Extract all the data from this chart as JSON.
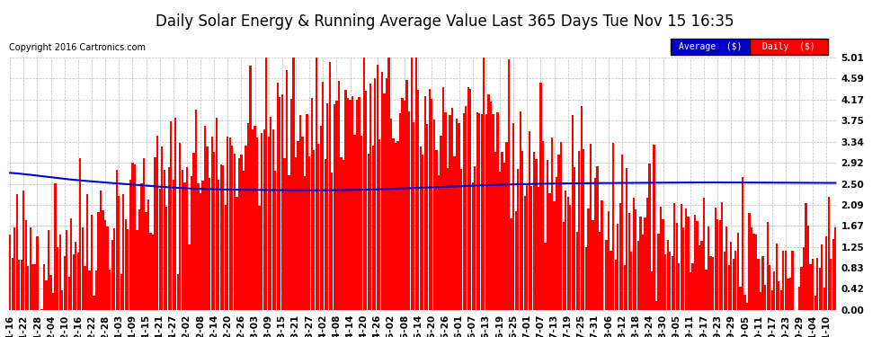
{
  "title": "Daily Solar Energy & Running Average Value Last 365 Days Tue Nov 15 16:35",
  "copyright": "Copyright 2016 Cartronics.com",
  "bar_color": "#ff0000",
  "avg_color": "#0000cc",
  "bg_color": "#ffffff",
  "plot_bg_color": "#ffffff",
  "grid_color": "#bbbbbb",
  "ylim": [
    0.0,
    5.01
  ],
  "yticks": [
    0.0,
    0.42,
    0.83,
    1.25,
    1.67,
    2.09,
    2.5,
    2.92,
    3.34,
    3.75,
    4.17,
    4.59,
    5.01
  ],
  "ytick_labels": [
    "0.00",
    "0.42",
    "0.83",
    "1.25",
    "1.67",
    "2.09",
    "2.50",
    "2.92",
    "3.34",
    "3.75",
    "4.17",
    "4.59",
    "5.01"
  ],
  "legend_avg_bg": "#0000cc",
  "legend_daily_bg": "#ff0000",
  "legend_text": "white",
  "legend_avg_label": "Average  ($)",
  "legend_daily_label": "Daily  ($)",
  "title_fontsize": 12,
  "tick_fontsize": 7.5,
  "copyright_fontsize": 7,
  "x_tick_labels": [
    "11-16",
    "11-22",
    "11-28",
    "12-04",
    "12-10",
    "12-16",
    "12-22",
    "12-28",
    "01-03",
    "01-09",
    "01-15",
    "01-21",
    "01-27",
    "02-02",
    "02-08",
    "02-14",
    "02-20",
    "02-26",
    "03-03",
    "03-09",
    "03-15",
    "03-21",
    "03-27",
    "04-02",
    "04-08",
    "04-14",
    "04-20",
    "04-26",
    "05-02",
    "05-08",
    "05-14",
    "05-20",
    "05-26",
    "06-01",
    "06-07",
    "06-13",
    "06-19",
    "06-25",
    "07-01",
    "07-07",
    "07-13",
    "07-19",
    "07-25",
    "07-31",
    "08-06",
    "08-12",
    "08-18",
    "08-24",
    "08-30",
    "09-05",
    "09-11",
    "09-17",
    "09-23",
    "09-29",
    "10-05",
    "10-11",
    "10-17",
    "10-23",
    "10-29",
    "11-04",
    "11-10"
  ],
  "avg_x_ctrl": [
    0,
    5,
    20,
    50,
    75,
    110,
    150,
    190,
    230,
    270,
    310,
    350,
    364
  ],
  "avg_y_ctrl": [
    2.72,
    2.7,
    2.62,
    2.5,
    2.42,
    2.38,
    2.38,
    2.44,
    2.5,
    2.52,
    2.53,
    2.52,
    2.52
  ]
}
